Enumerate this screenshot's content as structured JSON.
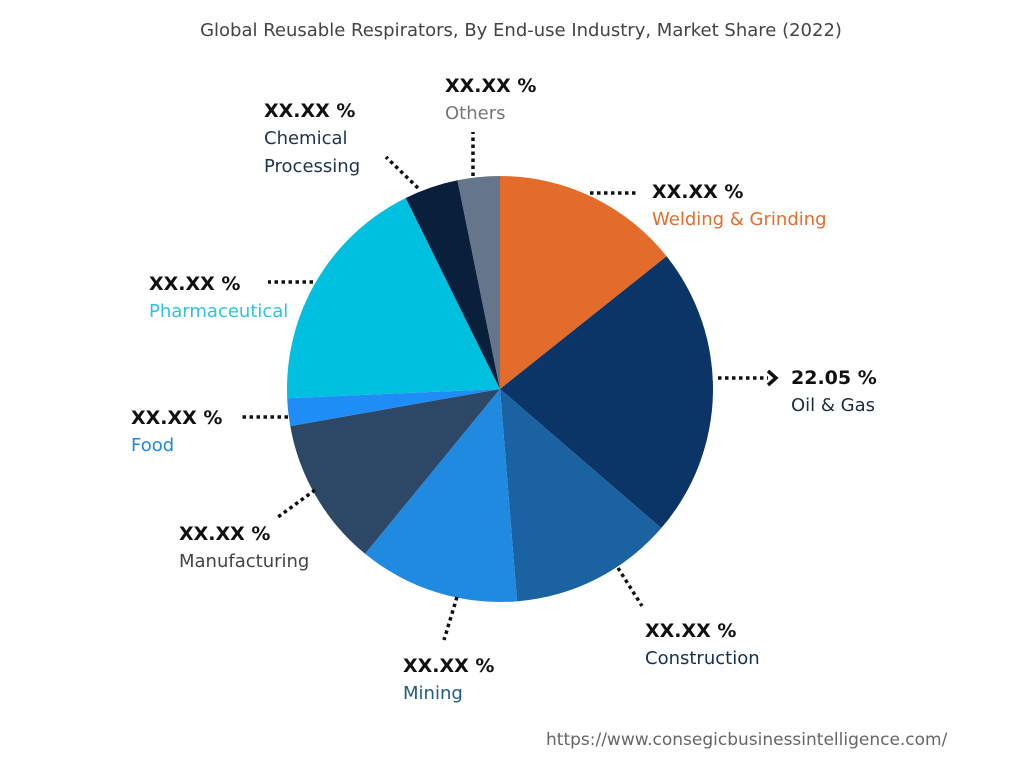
{
  "chart_data": {
    "type": "pie",
    "title": "Global Reusable Respirators, By End-use Industry, Market Share (2022)",
    "start_angle_deg": 0,
    "direction": "clockwise",
    "slices": [
      {
        "name": "Welding & Grinding",
        "label": "XX.XX %",
        "value": 14.3,
        "color": "#E46C2A",
        "text_color": "#E46C2A"
      },
      {
        "name": "Oil & Gas",
        "label": "22.05 %",
        "value": 22.05,
        "color": "#0B3566",
        "text_color": "#1B2C44"
      },
      {
        "name": "Construction",
        "label": "XX.XX %",
        "value": 12.4,
        "color": "#1A63A0",
        "text_color": "#14304F"
      },
      {
        "name": "Mining",
        "label": "XX.XX %",
        "value": 12.2,
        "color": "#2089E0",
        "text_color": "#1E5A8C"
      },
      {
        "name": "Manufacturing",
        "label": "XX.XX %",
        "value": 11.3,
        "color": "#2C4866",
        "text_color": "#444444"
      },
      {
        "name": "Food",
        "label": "XX.XX %",
        "value": 2.1,
        "color": "#1E8DF5",
        "text_color": "#1E88E5"
      },
      {
        "name": "Pharmaceutical",
        "label": "XX.XX %",
        "value": 18.4,
        "color": "#00C0E0",
        "text_color": "#2BC4DC"
      },
      {
        "name": "Chemical Processing",
        "label": "XX.XX %",
        "value": 4.1,
        "color": "#0A1F3C",
        "text_color": "#1D3450"
      },
      {
        "name": "Others",
        "label": "XX.XX %",
        "value": 3.2,
        "color": "#66768A",
        "text_color": "#777777"
      }
    ]
  },
  "source_url": "https://www.consegicbusinessintelligence.com/"
}
